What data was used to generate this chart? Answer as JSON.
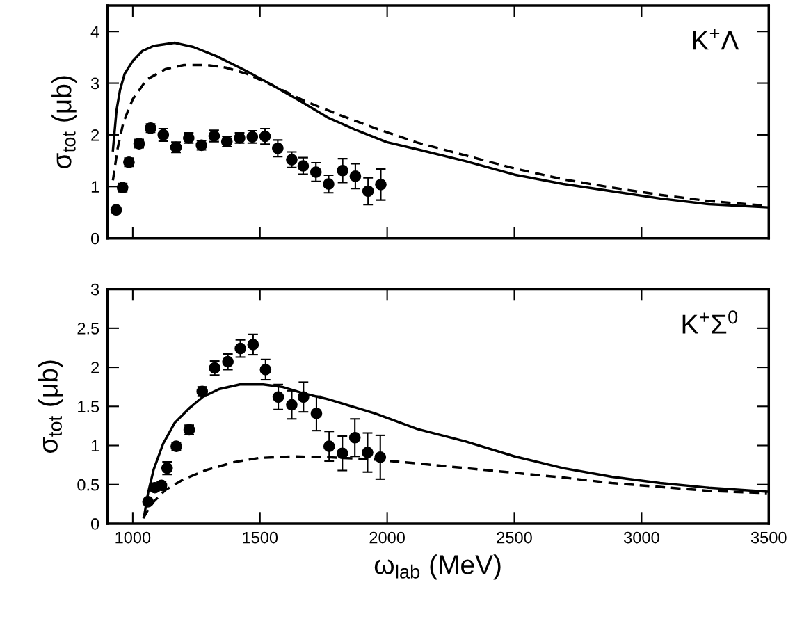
{
  "chart_data": [
    {
      "type": "scatter",
      "ylabel": "σ$_{tot}$ (μb)",
      "annotations": [
        "K$^{+}$Λ"
      ],
      "xlim": [
        900,
        3500
      ],
      "xticks": [
        {
          "value": 1000,
          "label": null
        },
        {
          "value": 1500,
          "label": null
        },
        {
          "value": 2000,
          "label": null
        },
        {
          "value": 2500,
          "label": null
        },
        {
          "value": 3000,
          "label": null
        }
      ],
      "ylim": [
        0,
        4.5
      ],
      "yticks": [
        0,
        1,
        2,
        3,
        4
      ],
      "tick_labels": "y",
      "grid": false,
      "legend": false,
      "series": [
        {
          "color": "#000000",
          "marker": "circle",
          "x": [
            935,
            960,
            985,
            1025,
            1070,
            1120,
            1170,
            1220,
            1270,
            1320,
            1370,
            1420,
            1470,
            1520,
            1570,
            1625,
            1670,
            1720,
            1770,
            1825,
            1875,
            1925,
            1975
          ],
          "values": [
            0.55,
            0.98,
            1.47,
            1.83,
            2.13,
            2.0,
            1.76,
            1.94,
            1.8,
            1.98,
            1.87,
            1.94,
            1.96,
            1.97,
            1.74,
            1.52,
            1.4,
            1.28,
            1.05,
            1.31,
            1.2,
            0.91,
            1.04
          ],
          "errors": [
            0.03,
            0.08,
            0.08,
            0.08,
            0.08,
            0.12,
            0.1,
            0.1,
            0.09,
            0.11,
            0.1,
            0.1,
            0.12,
            0.15,
            0.16,
            0.15,
            0.16,
            0.18,
            0.17,
            0.23,
            0.24,
            0.26,
            0.3
          ]
        },
        {
          "type": "line",
          "color": "#000000",
          "line_style": "solid",
          "x": [
            922,
            936,
            950,
            968,
            1000,
            1037,
            1082,
            1165,
            1238,
            1330,
            1449,
            1549,
            1659,
            1769,
            1879,
            1998,
            2119,
            2310,
            2501,
            2692,
            2883,
            3073,
            3264,
            3493
          ],
          "values": [
            1.7,
            2.47,
            2.87,
            3.18,
            3.43,
            3.62,
            3.72,
            3.78,
            3.7,
            3.52,
            3.23,
            2.96,
            2.65,
            2.33,
            2.09,
            1.86,
            1.72,
            1.49,
            1.23,
            1.05,
            0.91,
            0.77,
            0.66,
            0.6
          ]
        },
        {
          "type": "line",
          "color": "#000000",
          "line_style": "dashed",
          "x": [
            922,
            941,
            963,
            1000,
            1055,
            1128,
            1201,
            1293,
            1366,
            1449,
            1549,
            1678,
            1815,
            1952,
            2119,
            2310,
            2501,
            2692,
            2883,
            3073,
            3264,
            3493
          ],
          "values": [
            1.12,
            1.75,
            2.24,
            2.69,
            3.07,
            3.27,
            3.35,
            3.35,
            3.3,
            3.18,
            2.96,
            2.65,
            2.38,
            2.13,
            1.85,
            1.6,
            1.35,
            1.14,
            0.98,
            0.84,
            0.72,
            0.63
          ]
        }
      ]
    },
    {
      "type": "scatter",
      "ylabel": "σ$_{tot}$ (μb)",
      "xlabel": "ω$_{lab}$ (MeV)",
      "annotations": [
        "K$^{+}$Σ$^{0}$"
      ],
      "xlim": [
        900,
        3500
      ],
      "xticks": [
        1000,
        1500,
        2000,
        2500,
        3000,
        3500
      ],
      "ylim": [
        0,
        3
      ],
      "yticks": [
        0,
        0.5,
        1,
        1.5,
        2,
        2.5,
        3
      ],
      "grid": false,
      "legend": false,
      "series": [
        {
          "color": "#000000",
          "marker": "circle",
          "x": [
            1060,
            1087,
            1113,
            1135,
            1171,
            1222,
            1273,
            1322,
            1374,
            1423,
            1473,
            1522,
            1572,
            1625,
            1671,
            1722,
            1772,
            1824,
            1873,
            1923,
            1973
          ],
          "values": [
            0.28,
            0.46,
            0.49,
            0.71,
            0.99,
            1.2,
            1.69,
            1.99,
            2.07,
            2.24,
            2.29,
            1.97,
            1.62,
            1.52,
            1.62,
            1.41,
            0.99,
            0.9,
            1.1,
            0.91,
            0.85
          ],
          "errors": [
            0.03,
            0.04,
            0.05,
            0.08,
            0.05,
            0.06,
            0.06,
            0.09,
            0.1,
            0.11,
            0.13,
            0.13,
            0.16,
            0.18,
            0.19,
            0.22,
            0.19,
            0.22,
            0.24,
            0.25,
            0.28
          ]
        },
        {
          "type": "line",
          "color": "#000000",
          "line_style": "solid",
          "x": [
            1046,
            1060,
            1082,
            1119,
            1165,
            1220,
            1275,
            1339,
            1421,
            1513,
            1586,
            1678,
            1769,
            1952,
            2119,
            2310,
            2501,
            2692,
            2883,
            3073,
            3264,
            3493
          ],
          "values": [
            0.12,
            0.39,
            0.69,
            1.02,
            1.29,
            1.47,
            1.62,
            1.72,
            1.78,
            1.78,
            1.75,
            1.66,
            1.59,
            1.41,
            1.21,
            1.05,
            0.86,
            0.71,
            0.6,
            0.52,
            0.46,
            0.41
          ]
        },
        {
          "type": "line",
          "color": "#000000",
          "line_style": "dashed",
          "x": [
            1041,
            1073,
            1128,
            1201,
            1293,
            1403,
            1495,
            1632,
            1769,
            1952,
            2119,
            2310,
            2501,
            2692,
            2883,
            3073,
            3264,
            3493
          ],
          "values": [
            0.07,
            0.25,
            0.43,
            0.57,
            0.69,
            0.79,
            0.84,
            0.86,
            0.85,
            0.82,
            0.77,
            0.71,
            0.65,
            0.59,
            0.52,
            0.47,
            0.42,
            0.39
          ]
        }
      ]
    }
  ]
}
